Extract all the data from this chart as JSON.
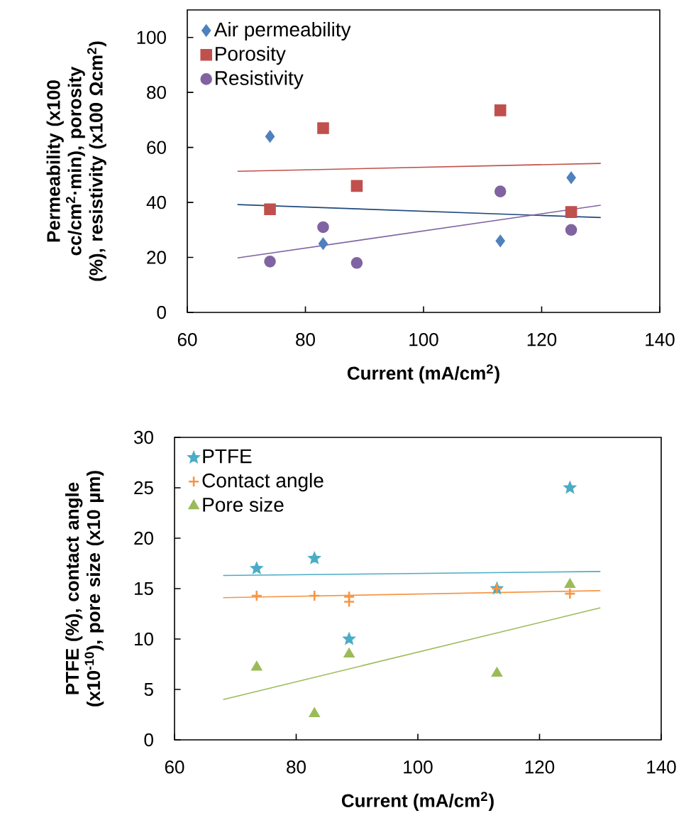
{
  "chart_data": [
    {
      "type": "scatter",
      "xlabel": "Current (mA/cm$^{2}$)",
      "ylabel": "Permeability (x100 cc/cm$^{2}$·min), porosity (%), resistivity (x100 Ωcm$^{2}$)",
      "xlim": [
        60,
        140
      ],
      "ylim": [
        0,
        110
      ],
      "xticks": [
        60,
        80,
        100,
        120,
        140
      ],
      "yticks": [
        0,
        20,
        40,
        60,
        80,
        100
      ],
      "legend": "top left",
      "grid": false,
      "series": [
        {
          "name": "Air permeability",
          "color": "#4f81bd",
          "marker": "diamond",
          "x": [
            74,
            83,
            88.7,
            113,
            125
          ],
          "values": [
            64,
            25,
            null,
            26,
            49
          ]
        },
        {
          "name": "Porosity",
          "color": "#c0504d",
          "marker": "square",
          "x": [
            74,
            83,
            88.7,
            113,
            125
          ],
          "values": [
            37.5,
            67,
            46,
            73.5,
            36.5
          ]
        },
        {
          "name": "Resistivity",
          "color": "#8064a2",
          "marker": "circle",
          "x": [
            74,
            83,
            88.7,
            113,
            125
          ],
          "values": [
            18.5,
            31,
            18,
            44,
            30
          ]
        },
        {
          "type": "line",
          "color": "#1f497d",
          "x": [
            68.5,
            130
          ],
          "values": [
            39.2,
            34.5
          ]
        },
        {
          "type": "line",
          "color": "#c0504d",
          "x": [
            68.5,
            130
          ],
          "values": [
            51.3,
            54.2
          ]
        },
        {
          "type": "line",
          "color": "#8064a2",
          "x": [
            68.5,
            130
          ],
          "values": [
            19.8,
            39
          ]
        }
      ]
    },
    {
      "type": "scatter",
      "xlabel": "Current (mA/cm$^{2}$)",
      "ylabel": "PTFE (%), contact angle (x10$^{-10}$), pore size (x10 µm)",
      "xlim": [
        60,
        140
      ],
      "ylim": [
        0,
        30
      ],
      "xticks": [
        60,
        80,
        100,
        120,
        140
      ],
      "yticks": [
        0,
        5,
        10,
        15,
        20,
        25,
        30
      ],
      "legend": "top left",
      "grid": false,
      "series": [
        {
          "name": "PTFE",
          "color": "#4bacc6",
          "marker": "star",
          "x": [
            73.5,
            83,
            88.7,
            113,
            125
          ],
          "values": [
            17,
            18,
            10,
            15,
            25
          ]
        },
        {
          "name": "Contact angle",
          "color": "#f79646",
          "marker": "cross",
          "x": [
            73.5,
            83,
            88.7,
            88.7,
            113,
            125
          ],
          "values": [
            14.3,
            14.3,
            14.2,
            13.7,
            15,
            14.5
          ]
        },
        {
          "name": "Pore size",
          "color": "#9bbb59",
          "marker": "triangle",
          "x": [
            73.5,
            83,
            88.7,
            113,
            125
          ],
          "values": [
            7.2,
            2.6,
            8.5,
            6.6,
            15.4
          ]
        },
        {
          "type": "line",
          "color": "#4bacc6",
          "x": [
            68,
            130
          ],
          "values": [
            16.3,
            16.7
          ]
        },
        {
          "type": "line",
          "color": "#f79646",
          "x": [
            68,
            130
          ],
          "values": [
            14.1,
            14.8
          ]
        },
        {
          "type": "line",
          "color": "#9bbb59",
          "x": [
            68,
            130
          ],
          "values": [
            4.0,
            13.1
          ]
        }
      ]
    }
  ]
}
